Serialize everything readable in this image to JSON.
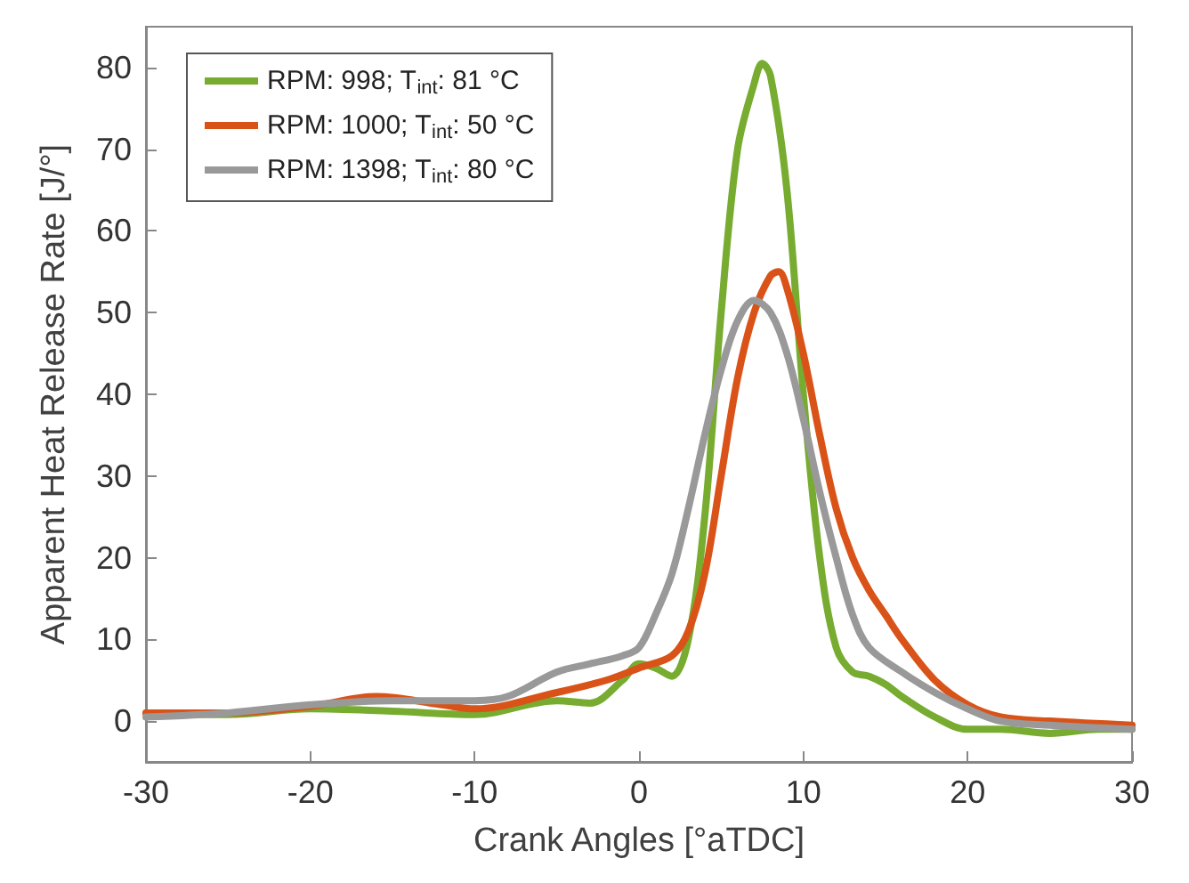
{
  "chart_data": {
    "type": "line",
    "xlabel": "Crank Angles [°aTDC]",
    "ylabel": "Apparent Heat Release Rate [J/°]",
    "xlim": [
      -30,
      30
    ],
    "xticks": [
      -30,
      -20,
      -10,
      0,
      10,
      20,
      30
    ],
    "ylim": [
      -5,
      85
    ],
    "yticks": [
      0,
      10,
      20,
      30,
      40,
      50,
      60,
      70,
      80
    ],
    "grid": false,
    "legend": "top left",
    "marker": "none",
    "line_style": "solid",
    "series": [
      {
        "name": "RPM: 998; T$_{int}$: 81 °C",
        "color": "#77ac30",
        "x": [
          -30,
          -25,
          -20,
          -15,
          -10,
          -5,
          -3,
          -1,
          0,
          1,
          2,
          3,
          4,
          5,
          6,
          7,
          7.5,
          8,
          9,
          10,
          11,
          12,
          13,
          14,
          15,
          16,
          18,
          20,
          22,
          25,
          28,
          30
        ],
        "values": [
          1,
          0.8,
          1.5,
          1.2,
          0.8,
          2.5,
          2.2,
          5,
          7,
          6.5,
          5.5,
          10,
          25,
          50,
          70,
          78,
          80.5,
          79,
          65,
          40,
          20,
          9,
          6,
          5.5,
          4.5,
          3,
          0.5,
          -1,
          -1,
          -1.5,
          -1,
          -1
        ]
      },
      {
        "name": "RPM: 1000; T$_{int}$: 50 °C",
        "color": "#d95319",
        "x": [
          -30,
          -25,
          -20,
          -16,
          -12,
          -10,
          -5,
          -2,
          0,
          2,
          3,
          4,
          5,
          6,
          7,
          8,
          8.5,
          9,
          10,
          11,
          12,
          13,
          14,
          15,
          16,
          18,
          20,
          22,
          25,
          30
        ],
        "values": [
          1,
          1,
          1.8,
          3,
          2,
          1.5,
          3.5,
          5,
          6.5,
          8,
          11,
          18,
          30,
          42,
          50,
          54.5,
          55,
          53,
          45,
          35,
          26,
          20,
          16,
          13,
          10,
          5,
          2,
          0.5,
          0,
          -0.5
        ]
      },
      {
        "name": "RPM: 1398; T$_{int}$: 80 °C",
        "color": "#999999",
        "x": [
          -30,
          -25,
          -20,
          -15,
          -10,
          -8,
          -5,
          -3,
          -1,
          0,
          1,
          2,
          3,
          4,
          5,
          6,
          7,
          8,
          9,
          10,
          11,
          12,
          13,
          14,
          16,
          18,
          20,
          22,
          25,
          30
        ],
        "values": [
          0.5,
          1,
          2,
          2.5,
          2.5,
          3,
          6,
          7,
          8,
          9,
          13,
          18,
          26,
          35,
          43,
          49,
          51.5,
          50,
          45,
          37,
          28,
          20,
          13,
          9,
          6,
          3.5,
          1.5,
          0,
          -0.5,
          -1
        ]
      }
    ]
  }
}
